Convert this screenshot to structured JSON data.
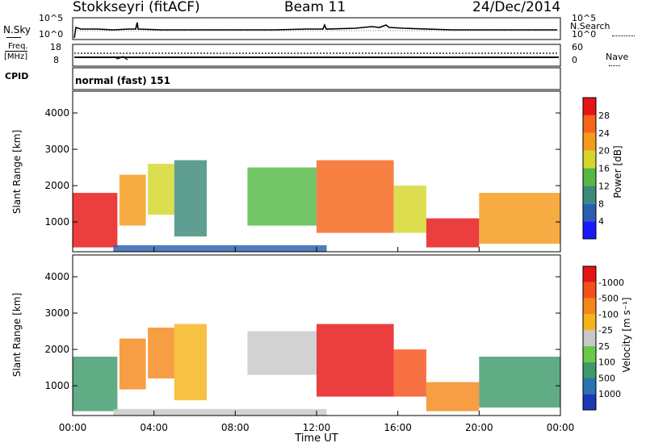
{
  "header": {
    "station": "Stokkseyri (fitACF)",
    "beam": "Beam 11",
    "date": "24/Dec/2014"
  },
  "strip_panels": {
    "nsky_label": "N.Sky",
    "nsearch_label": "N.Search",
    "freq_label_1": "Freq.",
    "freq_label_2": "[MHz]",
    "nave_label": "Nave",
    "cpid_label": "CPID",
    "cpid_value": "normal (fast) 151",
    "nsky_ticks": [
      "10^5",
      "10^0"
    ],
    "nsearch_ticks": [
      "10^5",
      "10^0"
    ],
    "freq_ticks": [
      "18",
      "8"
    ],
    "nave_ticks": [
      "60",
      "0"
    ]
  },
  "chart_data": [
    {
      "type": "heatmap",
      "title": "",
      "xlabel": "",
      "ylabel": "Slant Range [km]",
      "xlim": [
        0,
        24
      ],
      "ylim": [
        180,
        4600
      ],
      "yticks": [
        1000,
        2000,
        3000,
        4000
      ],
      "colorbar_label": "Power [dB]",
      "colorbar_ticks": [
        "4",
        "8",
        "12",
        "16",
        "20",
        "24",
        "28"
      ],
      "colorbar_colors": [
        "#1a1aff",
        "#2a5fb0",
        "#3c8a7a",
        "#55b845",
        "#d6d62a",
        "#f59a1a",
        "#f5641a",
        "#e61414"
      ],
      "echo_regions": [
        {
          "t0": 0.0,
          "t1": 2.2,
          "r0": 300,
          "r1": 1800,
          "level": 7
        },
        {
          "t0": 2.3,
          "t1": 3.6,
          "r0": 900,
          "r1": 2300,
          "level": 5
        },
        {
          "t0": 3.7,
          "t1": 5.0,
          "r0": 1200,
          "r1": 2600,
          "level": 4
        },
        {
          "t0": 5.0,
          "t1": 6.6,
          "r0": 600,
          "r1": 2700,
          "level": 2
        },
        {
          "t0": 8.6,
          "t1": 12.0,
          "r0": 900,
          "r1": 2500,
          "level": 3
        },
        {
          "t0": 12.0,
          "t1": 15.8,
          "r0": 700,
          "r1": 2700,
          "level": 6
        },
        {
          "t0": 15.8,
          "t1": 17.4,
          "r0": 700,
          "r1": 2000,
          "level": 4
        },
        {
          "t0": 17.4,
          "t1": 20.0,
          "r0": 300,
          "r1": 1100,
          "level": 7
        },
        {
          "t0": 20.0,
          "t1": 24.0,
          "r0": 400,
          "r1": 1800,
          "level": 5
        },
        {
          "t0": 2.0,
          "t1": 12.5,
          "r0": 180,
          "r1": 360,
          "level": 1
        }
      ]
    },
    {
      "type": "heatmap",
      "title": "",
      "xlabel": "Time UT",
      "ylabel": "Slant Range [km]",
      "xlim": [
        0,
        24
      ],
      "ylim": [
        180,
        4600
      ],
      "xticks": [
        "00:00",
        "04:00",
        "08:00",
        "12:00",
        "16:00",
        "20:00",
        "00:00"
      ],
      "yticks": [
        1000,
        2000,
        3000,
        4000
      ],
      "colorbar_label": "Velocity [m s⁻¹]",
      "colorbar_ticks": [
        "1000",
        "500",
        "100",
        "25",
        "-25",
        "-100",
        "-500",
        "-1000"
      ],
      "colorbar_colors": [
        "#1a3ab8",
        "#2a72b0",
        "#3c9a6a",
        "#6ac84a",
        "#c8c8c8",
        "#f5b31a",
        "#f5871a",
        "#f5501a",
        "#e61414"
      ],
      "echo_regions": [
        {
          "t0": 0.0,
          "t1": 2.2,
          "r0": 300,
          "r1": 1800,
          "level": 2
        },
        {
          "t0": 2.3,
          "t1": 3.6,
          "r0": 900,
          "r1": 2300,
          "level": 6
        },
        {
          "t0": 3.7,
          "t1": 5.0,
          "r0": 1200,
          "r1": 2600,
          "level": 6
        },
        {
          "t0": 5.0,
          "t1": 6.6,
          "r0": 600,
          "r1": 2700,
          "level": 5
        },
        {
          "t0": 8.6,
          "t1": 12.0,
          "r0": 1300,
          "r1": 2500,
          "level": 4
        },
        {
          "t0": 12.0,
          "t1": 15.8,
          "r0": 700,
          "r1": 2700,
          "level": 8
        },
        {
          "t0": 15.8,
          "t1": 17.4,
          "r0": 700,
          "r1": 2000,
          "level": 7
        },
        {
          "t0": 17.4,
          "t1": 20.0,
          "r0": 300,
          "r1": 1100,
          "level": 6
        },
        {
          "t0": 20.0,
          "t1": 24.0,
          "r0": 400,
          "r1": 1800,
          "level": 2
        },
        {
          "t0": 2.0,
          "t1": 12.5,
          "r0": 180,
          "r1": 360,
          "level": 4
        }
      ]
    }
  ]
}
